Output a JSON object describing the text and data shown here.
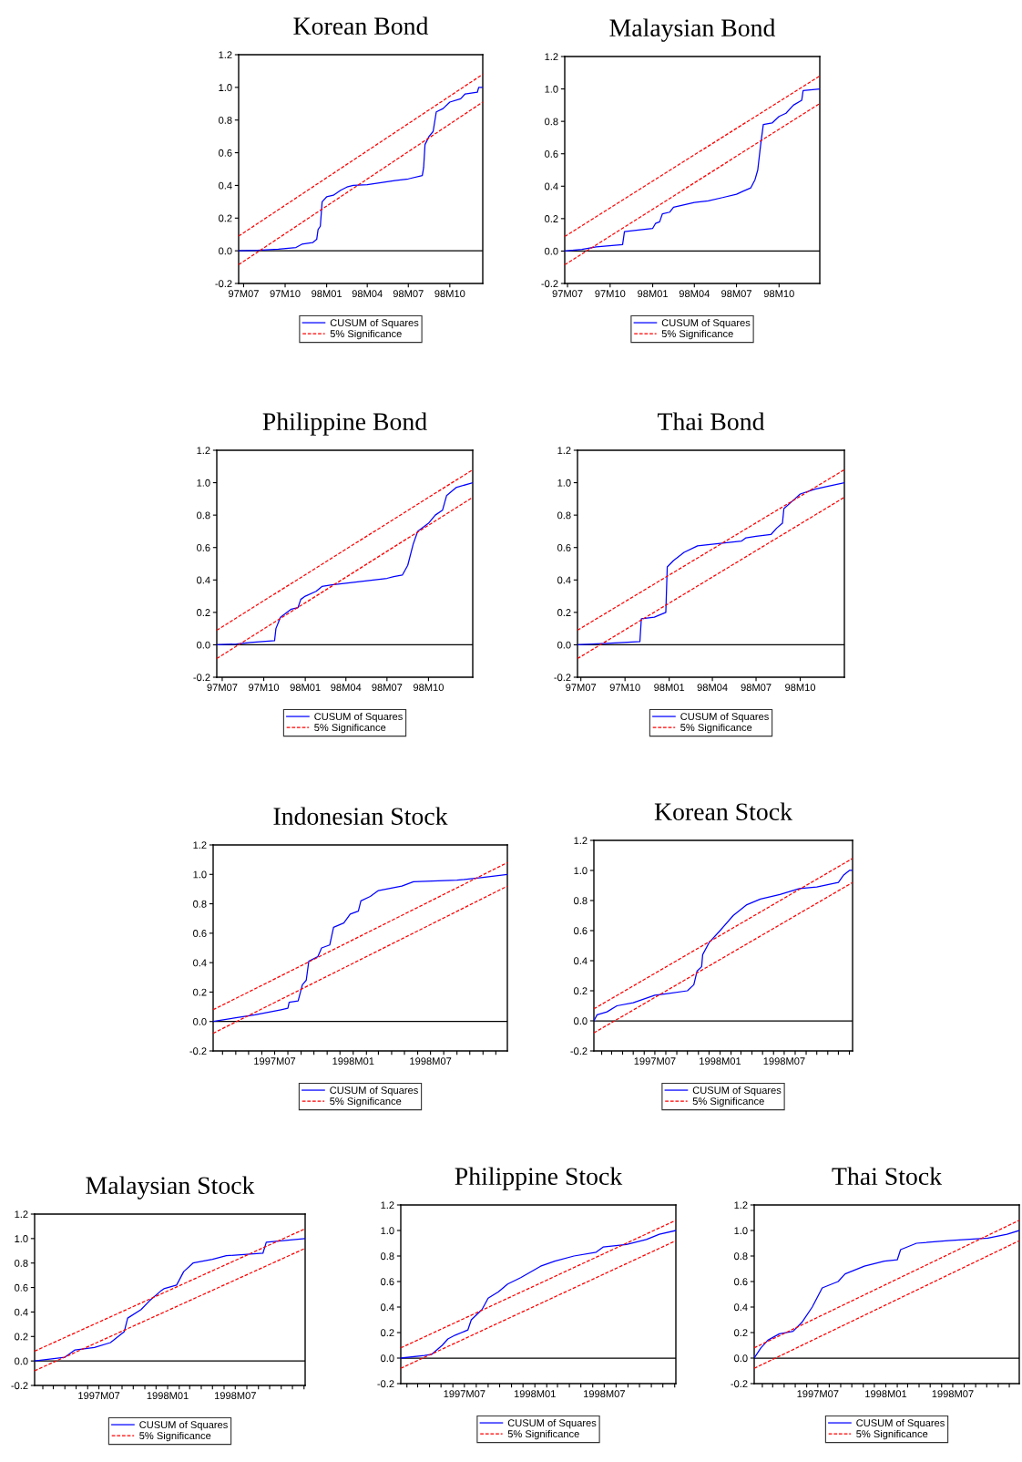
{
  "chart_data": [
    {
      "type": "line",
      "title": "Korean Bond",
      "xlim": [
        "1997-06-20",
        "1998-12-13"
      ],
      "ylim": [
        -0.2,
        1.2
      ],
      "yticks": [
        {
          "value": -0.2,
          "label": "-0.2"
        },
        {
          "value": 0,
          "label": "0.0"
        },
        {
          "value": 0.2,
          "label": "0.2"
        },
        {
          "value": 0.4,
          "label": "0.4"
        },
        {
          "value": 0.6,
          "label": "0.6"
        },
        {
          "value": 0.8,
          "label": "0.8"
        },
        {
          "value": 1,
          "label": "1.0"
        },
        {
          "value": 1.2,
          "label": "1.2"
        }
      ],
      "xticks": [
        {
          "value": "1997-07-01",
          "label": "97M07"
        },
        {
          "value": "1997-10-01",
          "label": "97M10"
        },
        {
          "value": "1998-01-01",
          "label": "98M01"
        },
        {
          "value": "1998-04-01",
          "label": "98M04"
        },
        {
          "value": "1998-07-01",
          "label": "98M07"
        },
        {
          "value": "1998-10-01",
          "label": "98M10"
        }
      ],
      "legend": "bottom",
      "ref_lines": [
        {
          "axis": "y",
          "value": 0,
          "color": "#000000"
        }
      ],
      "series": [
        {
          "name": "CUSUM of Squares",
          "color": "#0000ff",
          "line_style": "solid",
          "x": [
            "1997-06-20",
            "1997-08-01",
            "1997-09-16",
            "1997-10-25",
            "1997-11-07",
            "1997-12-01",
            "1997-12-10",
            "1997-12-13",
            "1997-12-18",
            "1997-12-22",
            "1998-01-01",
            "1998-01-16",
            "1998-02-01",
            "1998-02-15",
            "1998-03-01",
            "1998-04-01",
            "1998-06-01",
            "1998-07-01",
            "1998-08-01",
            "1998-08-04",
            "1998-08-07",
            "1998-08-16",
            "1998-08-25",
            "1998-09-01",
            "1998-09-16",
            "1998-10-01",
            "1998-10-25",
            "1998-11-04",
            "1998-12-01",
            "1998-12-04",
            "1998-12-13"
          ],
          "values": [
            0,
            0.003,
            0.01,
            0.02,
            0.04,
            0.05,
            0.07,
            0.13,
            0.15,
            0.3,
            0.33,
            0.34,
            0.37,
            0.39,
            0.4,
            0.405,
            0.43,
            0.44,
            0.46,
            0.51,
            0.65,
            0.7,
            0.73,
            0.85,
            0.87,
            0.91,
            0.93,
            0.96,
            0.97,
            1.0,
            1.0
          ]
        },
        {
          "name": "5% Significance",
          "color": "#ff0000",
          "line_style": "dashed",
          "x": [
            "1997-06-20",
            "1998-12-13"
          ],
          "values": [
            0.09,
            1.08
          ]
        },
        {
          "color": "#ff0000",
          "line_style": "dashed",
          "x": [
            "1997-06-20",
            "1998-12-13"
          ],
          "values": [
            -0.085,
            0.91
          ]
        }
      ]
    },
    {
      "type": "line",
      "title": "Malaysian Bond",
      "xlim": [
        "1997-06-25",
        "1998-12-28"
      ],
      "ylim": [
        -0.2,
        1.2
      ],
      "yticks": [
        {
          "value": -0.2,
          "label": "-0.2"
        },
        {
          "value": 0,
          "label": "0.0"
        },
        {
          "value": 0.2,
          "label": "0.2"
        },
        {
          "value": 0.4,
          "label": "0.4"
        },
        {
          "value": 0.6,
          "label": "0.6"
        },
        {
          "value": 0.8,
          "label": "0.8"
        },
        {
          "value": 1,
          "label": "1.0"
        },
        {
          "value": 1.2,
          "label": "1.2"
        }
      ],
      "xticks": [
        {
          "value": "1997-07-01",
          "label": "97M07"
        },
        {
          "value": "1997-10-01",
          "label": "97M10"
        },
        {
          "value": "1998-01-01",
          "label": "98M01"
        },
        {
          "value": "1998-04-01",
          "label": "98M04"
        },
        {
          "value": "1998-07-01",
          "label": "98M07"
        },
        {
          "value": "1998-10-01",
          "label": "98M10"
        }
      ],
      "legend": "bottom",
      "ref_lines": [
        {
          "axis": "y",
          "value": 0,
          "color": "#000000"
        }
      ],
      "series": [
        {
          "name": "CUSUM of Squares",
          "color": "#0000ff",
          "line_style": "solid",
          "x": [
            "1997-06-25",
            "1997-08-01",
            "1997-09-01",
            "1997-10-28",
            "1997-11-01",
            "1997-12-01",
            "1998-01-01",
            "1998-01-07",
            "1998-01-16",
            "1998-01-22",
            "1998-02-07",
            "1998-02-15",
            "1998-04-01",
            "1998-05-01",
            "1998-06-01",
            "1998-07-01",
            "1998-07-16",
            "1998-08-01",
            "1998-08-10",
            "1998-08-16",
            "1998-08-22",
            "1998-08-28",
            "1998-09-16",
            "1998-10-01",
            "1998-10-16",
            "1998-11-01",
            "1998-11-19",
            "1998-11-22",
            "1998-12-28"
          ],
          "values": [
            0,
            0.01,
            0.025,
            0.04,
            0.12,
            0.13,
            0.14,
            0.17,
            0.18,
            0.23,
            0.24,
            0.27,
            0.3,
            0.31,
            0.33,
            0.35,
            0.37,
            0.39,
            0.44,
            0.5,
            0.65,
            0.78,
            0.79,
            0.83,
            0.85,
            0.9,
            0.93,
            0.99,
            1.0
          ]
        },
        {
          "name": "5% Significance",
          "color": "#ff0000",
          "line_style": "dashed",
          "x": [
            "1997-06-25",
            "1998-12-28"
          ],
          "values": [
            0.09,
            1.08
          ]
        },
        {
          "color": "#ff0000",
          "line_style": "dashed",
          "x": [
            "1997-06-25",
            "1998-12-28"
          ],
          "values": [
            -0.085,
            0.91
          ]
        }
      ]
    },
    {
      "type": "line",
      "title": "Philippine Bond",
      "xlim": [
        "1997-06-19",
        "1999-01-07"
      ],
      "ylim": [
        -0.2,
        1.2
      ],
      "yticks": [
        {
          "value": -0.2,
          "label": "-0.2"
        },
        {
          "value": 0,
          "label": "0.0"
        },
        {
          "value": 0.2,
          "label": "0.2"
        },
        {
          "value": 0.4,
          "label": "0.4"
        },
        {
          "value": 0.6,
          "label": "0.6"
        },
        {
          "value": 0.8,
          "label": "0.8"
        },
        {
          "value": 1,
          "label": "1.0"
        },
        {
          "value": 1.2,
          "label": "1.2"
        }
      ],
      "xticks": [
        {
          "value": "1997-07-01",
          "label": "97M07"
        },
        {
          "value": "1997-10-01",
          "label": "97M10"
        },
        {
          "value": "1998-01-01",
          "label": "98M01"
        },
        {
          "value": "1998-04-01",
          "label": "98M04"
        },
        {
          "value": "1998-07-01",
          "label": "98M07"
        },
        {
          "value": "1998-10-01",
          "label": "98M10"
        }
      ],
      "legend": "bottom",
      "ref_lines": [
        {
          "axis": "y",
          "value": 0,
          "color": "#000000"
        }
      ],
      "series": [
        {
          "name": "CUSUM of Squares",
          "color": "#0000ff",
          "line_style": "solid",
          "x": [
            "1997-06-19",
            "1997-08-01",
            "1997-09-01",
            "1997-10-25",
            "1997-10-28",
            "1997-11-07",
            "1997-12-01",
            "1997-12-16",
            "1997-12-22",
            "1998-01-01",
            "1998-01-25",
            "1998-02-07",
            "1998-03-01",
            "1998-04-01",
            "1998-05-01",
            "1998-07-01",
            "1998-07-16",
            "1998-08-04",
            "1998-08-16",
            "1998-08-28",
            "1998-09-07",
            "1998-10-01",
            "1998-10-16",
            "1998-11-01",
            "1998-11-10",
            "1998-12-01",
            "1999-01-07"
          ],
          "values": [
            0,
            0.005,
            0.015,
            0.025,
            0.1,
            0.17,
            0.22,
            0.23,
            0.28,
            0.3,
            0.33,
            0.36,
            0.37,
            0.38,
            0.39,
            0.41,
            0.42,
            0.43,
            0.49,
            0.62,
            0.7,
            0.75,
            0.8,
            0.83,
            0.92,
            0.97,
            1.0
          ]
        },
        {
          "name": "5% Significance",
          "color": "#ff0000",
          "line_style": "dashed",
          "x": [
            "1997-06-19",
            "1999-01-07"
          ],
          "values": [
            0.09,
            1.08
          ]
        },
        {
          "color": "#ff0000",
          "line_style": "dashed",
          "x": [
            "1997-06-19",
            "1999-01-07"
          ],
          "values": [
            -0.085,
            0.91
          ]
        }
      ]
    },
    {
      "type": "line",
      "title": "Thai Bond",
      "xlim": [
        "1997-06-24",
        "1999-01-01"
      ],
      "ylim": [
        -0.2,
        1.2
      ],
      "yticks": [
        {
          "value": -0.2,
          "label": "-0.2"
        },
        {
          "value": 0,
          "label": "0.0"
        },
        {
          "value": 0.2,
          "label": "0.2"
        },
        {
          "value": 0.4,
          "label": "0.4"
        },
        {
          "value": 0.6,
          "label": "0.6"
        },
        {
          "value": 0.8,
          "label": "0.8"
        },
        {
          "value": 1,
          "label": "1.0"
        },
        {
          "value": 1.2,
          "label": "1.2"
        }
      ],
      "xticks": [
        {
          "value": "1997-07-01",
          "label": "97M07"
        },
        {
          "value": "1997-10-01",
          "label": "97M10"
        },
        {
          "value": "1998-01-01",
          "label": "98M01"
        },
        {
          "value": "1998-04-01",
          "label": "98M04"
        },
        {
          "value": "1998-07-01",
          "label": "98M07"
        },
        {
          "value": "1998-10-01",
          "label": "98M10"
        }
      ],
      "legend": "bottom",
      "ref_lines": [
        {
          "axis": "y",
          "value": 0,
          "color": "#000000"
        }
      ],
      "series": [
        {
          "name": "CUSUM of Squares",
          "color": "#0000ff",
          "line_style": "solid",
          "x": [
            "1997-06-24",
            "1997-09-01",
            "1997-11-01",
            "1997-11-04",
            "1997-12-01",
            "1997-12-25",
            "1997-12-28",
            "1998-01-10",
            "1998-02-01",
            "1998-03-01",
            "1998-05-01",
            "1998-06-01",
            "1998-06-10",
            "1998-07-01",
            "1998-08-01",
            "1998-08-13",
            "1998-08-25",
            "1998-08-28",
            "1998-09-16",
            "1998-10-01",
            "1998-11-01",
            "1998-12-01",
            "1999-01-01"
          ],
          "values": [
            0,
            0.01,
            0.02,
            0.16,
            0.17,
            0.2,
            0.48,
            0.52,
            0.57,
            0.61,
            0.63,
            0.64,
            0.66,
            0.67,
            0.68,
            0.72,
            0.75,
            0.84,
            0.89,
            0.93,
            0.96,
            0.98,
            1.0
          ]
        },
        {
          "name": "5% Significance",
          "color": "#ff0000",
          "line_style": "dashed",
          "x": [
            "1997-06-24",
            "1999-01-01"
          ],
          "values": [
            0.09,
            1.08
          ]
        },
        {
          "color": "#ff0000",
          "line_style": "dashed",
          "x": [
            "1997-06-24",
            "1999-01-01"
          ],
          "values": [
            -0.085,
            0.91
          ]
        }
      ]
    },
    {
      "type": "line",
      "title": "Indonesian Stock",
      "xlim": [
        "1997-02-07",
        "1998-12-28"
      ],
      "ylim": [
        -0.2,
        1.2
      ],
      "yticks": [
        {
          "value": -0.2,
          "label": "-0.2"
        },
        {
          "value": 0,
          "label": "0.0"
        },
        {
          "value": 0.2,
          "label": "0.2"
        },
        {
          "value": 0.4,
          "label": "0.4"
        },
        {
          "value": 0.6,
          "label": "0.6"
        },
        {
          "value": 0.8,
          "label": "0.8"
        },
        {
          "value": 1,
          "label": "1.0"
        },
        {
          "value": 1.2,
          "label": "1.2"
        }
      ],
      "xticks": [
        {
          "value": "1997-03-01",
          "label": null
        },
        {
          "value": "1997-04-01",
          "label": null
        },
        {
          "value": "1997-05-01",
          "label": null
        },
        {
          "value": "1997-06-01",
          "label": null
        },
        {
          "value": "1997-07-01",
          "label": "1997M07"
        },
        {
          "value": "1997-08-01",
          "label": null
        },
        {
          "value": "1997-09-01",
          "label": null
        },
        {
          "value": "1997-10-01",
          "label": null
        },
        {
          "value": "1997-11-01",
          "label": null
        },
        {
          "value": "1997-12-01",
          "label": null
        },
        {
          "value": "1998-01-01",
          "label": "1998M01"
        },
        {
          "value": "1998-02-01",
          "label": null
        },
        {
          "value": "1998-03-01",
          "label": null
        },
        {
          "value": "1998-04-01",
          "label": null
        },
        {
          "value": "1998-05-01",
          "label": null
        },
        {
          "value": "1998-06-01",
          "label": null
        },
        {
          "value": "1998-07-01",
          "label": "1998M07"
        },
        {
          "value": "1998-08-01",
          "label": null
        },
        {
          "value": "1998-09-01",
          "label": null
        },
        {
          "value": "1998-10-01",
          "label": null
        },
        {
          "value": "1998-11-01",
          "label": null
        },
        {
          "value": "1998-12-01",
          "label": null
        }
      ],
      "legend": "bottom",
      "ref_lines": [
        {
          "axis": "y",
          "value": 0,
          "color": "#000000"
        }
      ],
      "series": [
        {
          "name": "CUSUM of Squares",
          "color": "#0000ff",
          "line_style": "solid",
          "x": [
            "1997-02-07",
            "1997-04-01",
            "1997-05-16",
            "1997-07-16",
            "1997-08-01",
            "1997-08-04",
            "1997-08-25",
            "1997-09-04",
            "1997-09-13",
            "1997-09-19",
            "1997-10-10",
            "1997-10-19",
            "1997-11-07",
            "1997-11-16",
            "1997-12-10",
            "1997-12-25",
            "1998-01-13",
            "1998-01-19",
            "1998-02-10",
            "1998-03-01",
            "1998-04-25",
            "1998-05-22",
            "1998-09-01",
            "1998-11-01",
            "1998-12-28"
          ],
          "values": [
            0,
            0.025,
            0.045,
            0.08,
            0.09,
            0.13,
            0.14,
            0.25,
            0.28,
            0.41,
            0.44,
            0.5,
            0.52,
            0.64,
            0.67,
            0.73,
            0.75,
            0.82,
            0.85,
            0.89,
            0.92,
            0.95,
            0.96,
            0.98,
            1.0
          ]
        },
        {
          "name": "5% Significance",
          "color": "#ff0000",
          "line_style": "dashed",
          "x": [
            "1997-02-07",
            "1998-12-28"
          ],
          "values": [
            0.08,
            1.08
          ]
        },
        {
          "color": "#ff0000",
          "line_style": "dashed",
          "x": [
            "1997-02-07",
            "1998-12-28"
          ],
          "values": [
            -0.08,
            0.92
          ]
        }
      ]
    },
    {
      "type": "line",
      "title": "Korean Stock",
      "xlim": [
        "1997-01-10",
        "1999-01-10"
      ],
      "ylim": [
        -0.2,
        1.2
      ],
      "yticks": [
        {
          "value": -0.2,
          "label": "-0.2"
        },
        {
          "value": 0,
          "label": "0.0"
        },
        {
          "value": 0.2,
          "label": "0.2"
        },
        {
          "value": 0.4,
          "label": "0.4"
        },
        {
          "value": 0.6,
          "label": "0.6"
        },
        {
          "value": 0.8,
          "label": "0.8"
        },
        {
          "value": 1,
          "label": "1.0"
        },
        {
          "value": 1.2,
          "label": "1.2"
        }
      ],
      "xticks": [
        {
          "value": "1997-02-01",
          "label": null
        },
        {
          "value": "1997-03-01",
          "label": null
        },
        {
          "value": "1997-04-01",
          "label": null
        },
        {
          "value": "1997-05-01",
          "label": null
        },
        {
          "value": "1997-06-01",
          "label": null
        },
        {
          "value": "1997-07-01",
          "label": "1997M07"
        },
        {
          "value": "1997-08-01",
          "label": null
        },
        {
          "value": "1997-09-01",
          "label": null
        },
        {
          "value": "1997-10-01",
          "label": null
        },
        {
          "value": "1997-11-01",
          "label": null
        },
        {
          "value": "1997-12-01",
          "label": null
        },
        {
          "value": "1998-01-01",
          "label": "1998M01"
        },
        {
          "value": "1998-02-01",
          "label": null
        },
        {
          "value": "1998-03-01",
          "label": null
        },
        {
          "value": "1998-04-01",
          "label": null
        },
        {
          "value": "1998-05-01",
          "label": null
        },
        {
          "value": "1998-06-01",
          "label": null
        },
        {
          "value": "1998-07-01",
          "label": "1998M07"
        },
        {
          "value": "1998-08-01",
          "label": null
        },
        {
          "value": "1998-09-01",
          "label": null
        },
        {
          "value": "1998-10-01",
          "label": null
        },
        {
          "value": "1998-11-01",
          "label": null
        },
        {
          "value": "1998-12-01",
          "label": null
        },
        {
          "value": "1999-01-01",
          "label": null
        }
      ],
      "legend": "bottom",
      "ref_lines": [
        {
          "axis": "y",
          "value": 0,
          "color": "#000000"
        }
      ],
      "series": [
        {
          "name": "CUSUM of Squares",
          "color": "#0000ff",
          "line_style": "solid",
          "x": [
            "1997-01-10",
            "1997-01-19",
            "1997-02-16",
            "1997-03-16",
            "1997-05-01",
            "1997-07-01",
            "1997-08-01",
            "1997-10-01",
            "1997-10-19",
            "1997-10-28",
            "1997-11-10",
            "1997-11-13",
            "1997-12-01",
            "1998-01-01",
            "1998-02-07",
            "1998-03-16",
            "1998-04-25",
            "1998-06-19",
            "1998-08-13",
            "1998-10-01",
            "1998-12-01",
            "1998-12-16",
            "1999-01-01",
            "1999-01-10"
          ],
          "values": [
            0,
            0.04,
            0.06,
            0.1,
            0.12,
            0.17,
            0.18,
            0.2,
            0.24,
            0.33,
            0.36,
            0.44,
            0.52,
            0.6,
            0.7,
            0.77,
            0.81,
            0.84,
            0.88,
            0.89,
            0.92,
            0.97,
            1.0,
            1.0
          ]
        },
        {
          "name": "5% Significance",
          "color": "#ff0000",
          "line_style": "dashed",
          "x": [
            "1997-01-10",
            "1999-01-10"
          ],
          "values": [
            0.08,
            1.08
          ]
        },
        {
          "color": "#ff0000",
          "line_style": "dashed",
          "x": [
            "1997-01-10",
            "1999-01-10"
          ],
          "values": [
            -0.08,
            0.92
          ]
        }
      ]
    },
    {
      "type": "line",
      "title": "Malaysian Stock",
      "xlim": [
        "1997-01-10",
        "1999-01-04"
      ],
      "ylim": [
        -0.2,
        1.2
      ],
      "yticks": [
        {
          "value": -0.2,
          "label": "-0.2"
        },
        {
          "value": 0,
          "label": "0.0"
        },
        {
          "value": 0.2,
          "label": "0.2"
        },
        {
          "value": 0.4,
          "label": "0.4"
        },
        {
          "value": 0.6,
          "label": "0.6"
        },
        {
          "value": 0.8,
          "label": "0.8"
        },
        {
          "value": 1,
          "label": "1.0"
        },
        {
          "value": 1.2,
          "label": "1.2"
        }
      ],
      "xticks": [
        {
          "value": "1997-02-01",
          "label": null
        },
        {
          "value": "1997-03-01",
          "label": null
        },
        {
          "value": "1997-04-01",
          "label": null
        },
        {
          "value": "1997-05-01",
          "label": null
        },
        {
          "value": "1997-06-01",
          "label": null
        },
        {
          "value": "1997-07-01",
          "label": "1997M07"
        },
        {
          "value": "1997-08-01",
          "label": null
        },
        {
          "value": "1997-09-01",
          "label": null
        },
        {
          "value": "1997-10-01",
          "label": null
        },
        {
          "value": "1997-11-01",
          "label": null
        },
        {
          "value": "1997-12-01",
          "label": null
        },
        {
          "value": "1998-01-01",
          "label": "1998M01"
        },
        {
          "value": "1998-02-01",
          "label": null
        },
        {
          "value": "1998-03-01",
          "label": null
        },
        {
          "value": "1998-04-01",
          "label": null
        },
        {
          "value": "1998-05-01",
          "label": null
        },
        {
          "value": "1998-06-01",
          "label": null
        },
        {
          "value": "1998-07-01",
          "label": "1998M07"
        },
        {
          "value": "1998-08-01",
          "label": null
        },
        {
          "value": "1998-09-01",
          "label": null
        },
        {
          "value": "1998-10-01",
          "label": null
        },
        {
          "value": "1998-11-01",
          "label": null
        },
        {
          "value": "1998-12-01",
          "label": null
        },
        {
          "value": "1999-01-01",
          "label": null
        }
      ],
      "legend": "bottom",
      "ref_lines": [
        {
          "axis": "y",
          "value": 0,
          "color": "#000000"
        }
      ],
      "series": [
        {
          "name": "CUSUM of Squares",
          "color": "#0000ff",
          "line_style": "solid",
          "x": [
            "1997-01-10",
            "1997-04-01",
            "1997-04-28",
            "1997-06-19",
            "1997-08-01",
            "1997-09-07",
            "1997-09-16",
            "1997-10-22",
            "1997-11-13",
            "1997-12-13",
            "1997-12-22",
            "1998-01-25",
            "1998-02-13",
            "1998-03-10",
            "1998-05-01",
            "1998-06-07",
            "1998-09-13",
            "1998-09-22",
            "1999-01-04"
          ],
          "values": [
            0,
            0.03,
            0.09,
            0.11,
            0.15,
            0.24,
            0.35,
            0.42,
            0.49,
            0.57,
            0.59,
            0.62,
            0.73,
            0.8,
            0.83,
            0.86,
            0.88,
            0.97,
            1.0
          ]
        },
        {
          "name": "5% Significance",
          "color": "#ff0000",
          "line_style": "dashed",
          "x": [
            "1997-01-10",
            "1999-01-04"
          ],
          "values": [
            0.08,
            1.08
          ]
        },
        {
          "color": "#ff0000",
          "line_style": "dashed",
          "x": [
            "1997-01-10",
            "1999-01-04"
          ],
          "values": [
            -0.08,
            0.92
          ]
        }
      ]
    },
    {
      "type": "line",
      "title": "Philippine Stock",
      "xlim": [
        "1997-01-16",
        "1999-01-04"
      ],
      "ylim": [
        -0.2,
        1.2
      ],
      "yticks": [
        {
          "value": -0.2,
          "label": "-0.2"
        },
        {
          "value": 0,
          "label": "0.0"
        },
        {
          "value": 0.2,
          "label": "0.2"
        },
        {
          "value": 0.4,
          "label": "0.4"
        },
        {
          "value": 0.6,
          "label": "0.6"
        },
        {
          "value": 0.8,
          "label": "0.8"
        },
        {
          "value": 1,
          "label": "1.0"
        },
        {
          "value": 1.2,
          "label": "1.2"
        }
      ],
      "xticks": [
        {
          "value": "1997-02-01",
          "label": null
        },
        {
          "value": "1997-03-01",
          "label": null
        },
        {
          "value": "1997-04-01",
          "label": null
        },
        {
          "value": "1997-05-01",
          "label": null
        },
        {
          "value": "1997-06-01",
          "label": null
        },
        {
          "value": "1997-07-01",
          "label": "1997M07"
        },
        {
          "value": "1997-08-01",
          "label": null
        },
        {
          "value": "1997-09-01",
          "label": null
        },
        {
          "value": "1997-10-01",
          "label": null
        },
        {
          "value": "1997-11-01",
          "label": null
        },
        {
          "value": "1997-12-01",
          "label": null
        },
        {
          "value": "1998-01-01",
          "label": "1998M01"
        },
        {
          "value": "1998-02-01",
          "label": null
        },
        {
          "value": "1998-03-01",
          "label": null
        },
        {
          "value": "1998-04-01",
          "label": null
        },
        {
          "value": "1998-05-01",
          "label": null
        },
        {
          "value": "1998-06-01",
          "label": null
        },
        {
          "value": "1998-07-01",
          "label": "1998M07"
        },
        {
          "value": "1998-08-01",
          "label": null
        },
        {
          "value": "1998-09-01",
          "label": null
        },
        {
          "value": "1998-10-01",
          "label": null
        },
        {
          "value": "1998-11-01",
          "label": null
        },
        {
          "value": "1998-12-01",
          "label": null
        },
        {
          "value": "1999-01-01",
          "label": null
        }
      ],
      "legend": "bottom",
      "ref_lines": [
        {
          "axis": "y",
          "value": 0,
          "color": "#000000"
        }
      ],
      "series": [
        {
          "name": "CUSUM of Squares",
          "color": "#0000ff",
          "line_style": "solid",
          "x": [
            "1997-01-16",
            "1997-03-19",
            "1997-04-07",
            "1997-05-04",
            "1997-05-19",
            "1997-06-07",
            "1997-07-10",
            "1997-07-19",
            "1997-08-16",
            "1997-09-01",
            "1997-09-28",
            "1997-10-22",
            "1997-11-25",
            "1998-01-16",
            "1998-02-22",
            "1998-04-13",
            "1998-06-10",
            "1998-06-28",
            "1998-08-28",
            "1998-10-19",
            "1998-11-22",
            "1999-01-04"
          ],
          "values": [
            0,
            0.02,
            0.03,
            0.1,
            0.15,
            0.18,
            0.22,
            0.3,
            0.38,
            0.47,
            0.52,
            0.58,
            0.63,
            0.72,
            0.76,
            0.8,
            0.83,
            0.87,
            0.89,
            0.93,
            0.97,
            1.0
          ]
        },
        {
          "name": "5% Significance",
          "color": "#ff0000",
          "line_style": "dashed",
          "x": [
            "1997-01-16",
            "1999-01-04"
          ],
          "values": [
            0.08,
            1.08
          ]
        },
        {
          "color": "#ff0000",
          "line_style": "dashed",
          "x": [
            "1997-01-16",
            "1999-01-04"
          ],
          "values": [
            -0.08,
            0.92
          ]
        }
      ]
    },
    {
      "type": "line",
      "title": "Thai Stock",
      "xlim": [
        "1997-01-10",
        "1998-12-28"
      ],
      "ylim": [
        -0.2,
        1.2
      ],
      "yticks": [
        {
          "value": -0.2,
          "label": "-0.2"
        },
        {
          "value": 0,
          "label": "0.0"
        },
        {
          "value": 0.2,
          "label": "0.2"
        },
        {
          "value": 0.4,
          "label": "0.4"
        },
        {
          "value": 0.6,
          "label": "0.6"
        },
        {
          "value": 0.8,
          "label": "0.8"
        },
        {
          "value": 1,
          "label": "1.0"
        },
        {
          "value": 1.2,
          "label": "1.2"
        }
      ],
      "xticks": [
        {
          "value": "1997-02-01",
          "label": null
        },
        {
          "value": "1997-03-01",
          "label": null
        },
        {
          "value": "1997-04-01",
          "label": null
        },
        {
          "value": "1997-05-01",
          "label": null
        },
        {
          "value": "1997-06-01",
          "label": null
        },
        {
          "value": "1997-07-01",
          "label": "1997M07"
        },
        {
          "value": "1997-08-01",
          "label": null
        },
        {
          "value": "1997-09-01",
          "label": null
        },
        {
          "value": "1997-10-01",
          "label": null
        },
        {
          "value": "1997-11-01",
          "label": null
        },
        {
          "value": "1997-12-01",
          "label": null
        },
        {
          "value": "1998-01-01",
          "label": "1998M01"
        },
        {
          "value": "1998-02-01",
          "label": null
        },
        {
          "value": "1998-03-01",
          "label": null
        },
        {
          "value": "1998-04-01",
          "label": null
        },
        {
          "value": "1998-05-01",
          "label": null
        },
        {
          "value": "1998-06-01",
          "label": null
        },
        {
          "value": "1998-07-01",
          "label": "1998M07"
        },
        {
          "value": "1998-08-01",
          "label": null
        },
        {
          "value": "1998-09-01",
          "label": null
        },
        {
          "value": "1998-10-01",
          "label": null
        },
        {
          "value": "1998-11-01",
          "label": null
        },
        {
          "value": "1998-12-01",
          "label": null
        }
      ],
      "legend": "bottom",
      "ref_lines": [
        {
          "axis": "y",
          "value": 0,
          "color": "#000000"
        }
      ],
      "series": [
        {
          "name": "CUSUM of Squares",
          "color": "#0000ff",
          "line_style": "solid",
          "x": [
            "1997-01-10",
            "1997-01-28",
            "1997-02-16",
            "1997-03-19",
            "1997-04-25",
            "1997-05-19",
            "1997-06-16",
            "1997-07-13",
            "1997-08-25",
            "1997-09-13",
            "1997-11-04",
            "1997-12-28",
            "1998-02-01",
            "1998-02-10",
            "1998-03-25",
            "1998-06-19",
            "1998-10-04",
            "1998-11-25",
            "1998-12-28"
          ],
          "values": [
            0,
            0.08,
            0.14,
            0.19,
            0.21,
            0.28,
            0.4,
            0.55,
            0.6,
            0.66,
            0.72,
            0.76,
            0.77,
            0.85,
            0.9,
            0.92,
            0.94,
            0.97,
            1.0
          ]
        },
        {
          "name": "5% Significance",
          "color": "#ff0000",
          "line_style": "dashed",
          "x": [
            "1997-01-10",
            "1998-12-28"
          ],
          "values": [
            0.08,
            1.08
          ]
        },
        {
          "color": "#ff0000",
          "line_style": "dashed",
          "x": [
            "1997-01-10",
            "1998-12-28"
          ],
          "values": [
            -0.08,
            0.92
          ]
        }
      ]
    }
  ]
}
